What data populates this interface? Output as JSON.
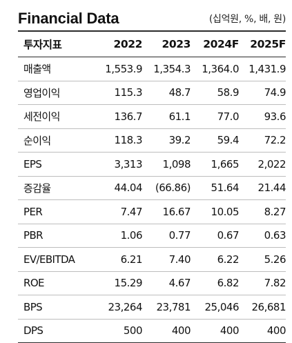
{
  "title": "Financial Data",
  "unit_note": "(십억원, %, 배, 원)",
  "table": {
    "header": [
      "투자지표",
      "2022",
      "2023",
      "2024F",
      "2025F"
    ],
    "rows": [
      [
        "매출액",
        "1,553.9",
        "1,354.3",
        "1,364.0",
        "1,431.9"
      ],
      [
        "영업이익",
        "115.3",
        "48.7",
        "58.9",
        "74.9"
      ],
      [
        "세전이익",
        "136.7",
        "61.1",
        "77.0",
        "93.6"
      ],
      [
        "순이익",
        "118.3",
        "39.2",
        "59.4",
        "72.2"
      ],
      [
        "EPS",
        "3,313",
        "1,098",
        "1,665",
        "2,022"
      ],
      [
        "증감율",
        "44.04",
        "(66.86)",
        "51.64",
        "21.44"
      ],
      [
        "PER",
        "7.47",
        "16.67",
        "10.05",
        "8.27"
      ],
      [
        "PBR",
        "1.06",
        "0.77",
        "0.67",
        "0.63"
      ],
      [
        "EV/EBITDA",
        "6.21",
        "7.40",
        "6.22",
        "5.26"
      ],
      [
        "ROE",
        "15.29",
        "4.67",
        "6.82",
        "7.82"
      ],
      [
        "BPS",
        "23,264",
        "23,781",
        "25,046",
        "26,681"
      ],
      [
        "DPS",
        "500",
        "400",
        "400",
        "400"
      ]
    ]
  }
}
